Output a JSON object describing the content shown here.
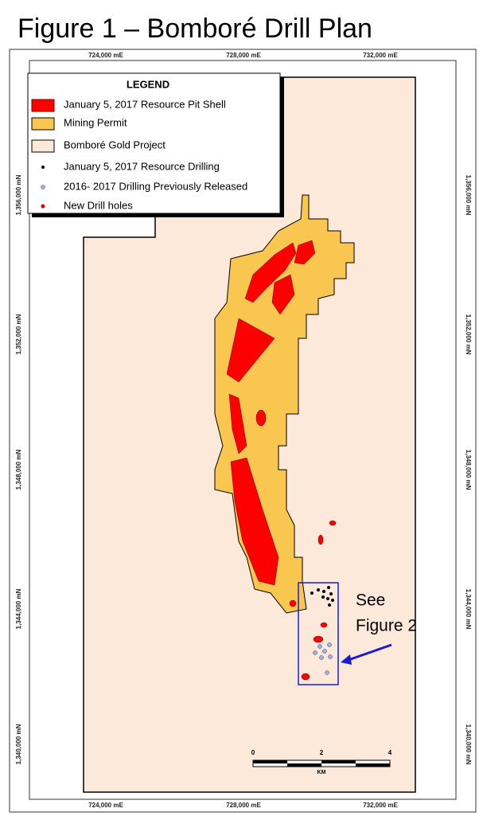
{
  "title": "Figure 1 – Bomboré Drill Plan",
  "map": {
    "x_labels_top": [
      "724,000 mE",
      "728,000 mE",
      "732,000 mE"
    ],
    "x_labels_bottom": [
      "724,000 mE",
      "728,000 mE",
      "732,000 mE"
    ],
    "y_labels_left": [
      "1,356,000 mN",
      "1,352,000 mN",
      "1,348,000 mN",
      "1,344,000 mN",
      "1,340,000 mN"
    ],
    "y_labels_right": [
      "1,356,000 mN",
      "1,352,000 mN",
      "1,348,000 mN",
      "1,344,000 mN",
      "1,340,000 mN"
    ]
  },
  "legend": {
    "title": "LEGEND",
    "items": [
      "January 5, 2017 Resource Pit Shell",
      "Mining Permit",
      "Bomboré Gold Project",
      "January 5, 2017 Resource Drilling",
      "2016- 2017 Drilling Previously Released",
      "New Drill holes"
    ]
  },
  "scale": {
    "ticks": [
      "0",
      "2",
      "4"
    ],
    "unit": "KM"
  },
  "annotation": [
    "See",
    "Figure 2"
  ]
}
